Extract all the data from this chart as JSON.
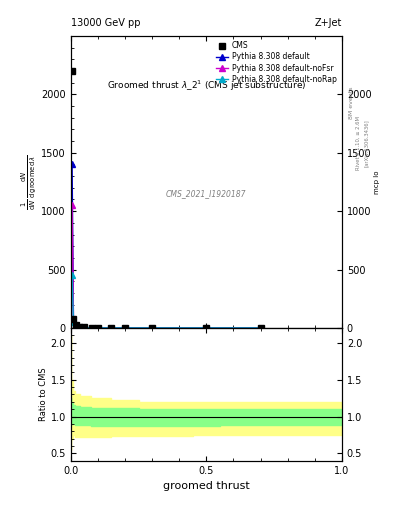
{
  "title_top": "13000 GeV pp",
  "title_right": "Z+Jet",
  "plot_title": "Groomed thrust $\\lambda\\_2^1$ (CMS jet substructure)",
  "cms_label": "CMS_2021_I1920187",
  "xlabel": "groomed thrust",
  "ylabel_ratio": "Ratio to CMS",
  "legend_entries": [
    "CMS",
    "Pythia 8.308 default",
    "Pythia 8.308 default-noFsr",
    "Pythia 8.308 default-noRap"
  ],
  "main_ylim": [
    0,
    2500
  ],
  "main_yticks": [
    0,
    500,
    1000,
    1500,
    2000
  ],
  "ratio_ylim": [
    0.4,
    2.2
  ],
  "ratio_yticks": [
    0.5,
    1.0,
    1.5,
    2.0
  ],
  "xlim": [
    0,
    1
  ],
  "xticks": [
    0,
    0.5,
    1.0
  ],
  "cms_x": [
    0.005,
    0.01,
    0.02,
    0.03,
    0.05,
    0.08,
    0.1,
    0.15,
    0.2,
    0.3,
    0.5,
    0.7
  ],
  "cms_y": [
    2200,
    80,
    25,
    10,
    5,
    3,
    2,
    2,
    2,
    2,
    2,
    2
  ],
  "pythia_default_x": [
    0.005,
    0.01,
    0.02,
    0.03,
    0.05,
    0.08,
    0.1,
    0.15,
    0.2,
    0.3,
    0.5,
    0.7
  ],
  "pythia_default_y": [
    1400,
    70,
    20,
    8,
    4,
    2,
    2,
    1,
    1,
    1,
    1,
    1
  ],
  "pythia_nofsr_x": [
    0.005,
    0.01,
    0.02,
    0.03,
    0.05,
    0.08,
    0.1,
    0.15,
    0.2,
    0.3,
    0.5,
    0.7
  ],
  "pythia_nofsr_y": [
    1050,
    65,
    18,
    7,
    3,
    2,
    1,
    1,
    1,
    1,
    1,
    1
  ],
  "pythia_norap_x": [
    0.005,
    0.01,
    0.02,
    0.03,
    0.05,
    0.08,
    0.1,
    0.15,
    0.2,
    0.3,
    0.5,
    0.7
  ],
  "pythia_norap_y": [
    450,
    55,
    15,
    6,
    3,
    2,
    1,
    1,
    1,
    1,
    1,
    1
  ],
  "band_x": [
    0.0,
    0.005,
    0.01,
    0.02,
    0.05,
    0.1,
    0.2,
    0.3,
    0.4,
    0.5,
    0.6,
    0.7,
    0.8,
    0.9,
    1.0
  ],
  "yellow_upper": [
    2.1,
    1.5,
    1.35,
    1.3,
    1.28,
    1.25,
    1.22,
    1.2,
    1.2,
    1.2,
    1.2,
    1.2,
    1.2,
    1.2,
    1.2
  ],
  "yellow_lower": [
    0.55,
    0.7,
    0.75,
    0.72,
    0.72,
    0.72,
    0.73,
    0.74,
    0.74,
    0.75,
    0.75,
    0.75,
    0.75,
    0.75,
    0.75
  ],
  "green_upper": [
    1.25,
    1.18,
    1.15,
    1.14,
    1.13,
    1.12,
    1.11,
    1.1,
    1.1,
    1.1,
    1.1,
    1.1,
    1.1,
    1.1,
    1.1
  ],
  "green_lower": [
    0.88,
    0.9,
    0.9,
    0.89,
    0.88,
    0.87,
    0.87,
    0.87,
    0.87,
    0.87,
    0.88,
    0.88,
    0.88,
    0.88,
    0.88
  ],
  "color_cms": "#000000",
  "color_default": "#0000cc",
  "color_nofsr": "#cc00cc",
  "color_norap": "#00aacc",
  "color_yellow": "#ffff88",
  "color_green": "#88ff88",
  "fig_width": 3.93,
  "fig_height": 5.12,
  "dpi": 100
}
